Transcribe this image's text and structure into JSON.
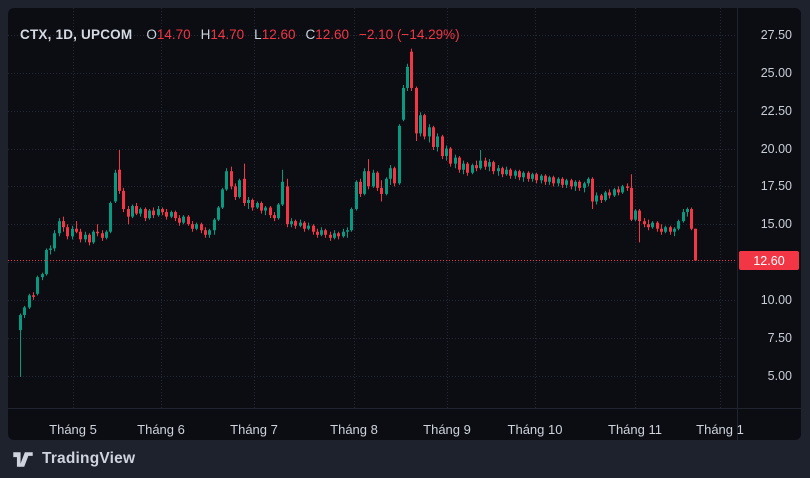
{
  "header": {
    "symbol": "CTX, 1D, UPCOM",
    "ohlc": [
      {
        "label": "O",
        "value": "14.70"
      },
      {
        "label": "H",
        "value": "14.70"
      },
      {
        "label": "L",
        "value": "12.60"
      },
      {
        "label": "C",
        "value": "12.60"
      }
    ],
    "change": "−2.10 (−14.29%)"
  },
  "chart_data": {
    "type": "candlestick",
    "title": "CTX, 1D, UPCOM",
    "xlabel": "",
    "ylabel": "",
    "x_tick_labels": [
      "Tháng 5",
      "Tháng 6",
      "Tháng 7",
      "Tháng 8",
      "Tháng 9",
      "Tháng 10",
      "Tháng 11",
      "Tháng 1"
    ],
    "y_ticks": [
      {
        "v": 27.5,
        "label": "27.50"
      },
      {
        "v": 25.0,
        "label": "25.00"
      },
      {
        "v": 22.5,
        "label": "22.50"
      },
      {
        "v": 20.0,
        "label": "20.00"
      },
      {
        "v": 17.5,
        "label": "17.50"
      },
      {
        "v": 15.0,
        "label": "15.00"
      },
      {
        "v": 10.0,
        "label": "10.00"
      },
      {
        "v": 7.5,
        "label": "7.50"
      },
      {
        "v": 5.0,
        "label": "5.00"
      }
    ],
    "ylim": [
      2.9,
      29.3
    ],
    "grid": true,
    "legend_position": "top-left",
    "last_price": 12.6,
    "last_price_label": "12.60",
    "last_candle_ohlc": {
      "open": 14.7,
      "high": 14.7,
      "low": 12.6,
      "close": 12.6
    },
    "change_abs": -2.1,
    "change_pct": -14.29,
    "colors": {
      "up": "#089981",
      "down": "#f23645",
      "price_line": "#f23645",
      "grid": "#242936",
      "separator": "#1f242e"
    },
    "candles": [
      [
        8.0,
        9.1,
        4.9,
        9.0
      ],
      [
        9.0,
        9.6,
        8.8,
        9.5
      ],
      [
        9.5,
        10.4,
        9.4,
        10.3
      ],
      [
        10.3,
        10.5,
        10.0,
        10.2
      ],
      [
        10.4,
        11.6,
        10.3,
        11.5
      ],
      [
        11.5,
        11.8,
        11.3,
        11.7
      ],
      [
        11.7,
        13.4,
        11.6,
        13.3
      ],
      [
        13.3,
        13.6,
        13.0,
        13.4
      ],
      [
        13.4,
        14.6,
        13.2,
        14.4
      ],
      [
        14.4,
        15.4,
        14.2,
        15.2
      ],
      [
        15.2,
        15.5,
        14.5,
        14.8
      ],
      [
        14.8,
        15.0,
        14.0,
        14.2
      ],
      [
        14.2,
        14.9,
        14.0,
        14.7
      ],
      [
        14.7,
        15.2,
        14.4,
        14.5
      ],
      [
        14.5,
        14.7,
        13.8,
        14.0
      ],
      [
        14.0,
        14.5,
        13.8,
        14.3
      ],
      [
        14.3,
        14.4,
        13.6,
        13.8
      ],
      [
        13.8,
        14.6,
        13.7,
        14.5
      ],
      [
        14.5,
        15.0,
        14.2,
        14.4
      ],
      [
        14.4,
        14.6,
        13.9,
        14.1
      ],
      [
        14.1,
        14.6,
        14.0,
        14.5
      ],
      [
        14.5,
        16.5,
        14.4,
        16.4
      ],
      [
        16.5,
        18.6,
        16.4,
        18.4
      ],
      [
        18.6,
        19.9,
        17.0,
        17.2
      ],
      [
        17.2,
        17.4,
        15.8,
        16.0
      ],
      [
        16.0,
        16.2,
        15.0,
        15.5
      ],
      [
        15.5,
        16.3,
        15.4,
        16.2
      ],
      [
        16.2,
        16.4,
        15.6,
        15.7
      ],
      [
        15.7,
        16.1,
        15.5,
        16.0
      ],
      [
        16.0,
        16.1,
        15.2,
        15.4
      ],
      [
        15.4,
        16.0,
        15.3,
        15.9
      ],
      [
        15.9,
        16.1,
        15.4,
        15.6
      ],
      [
        15.6,
        16.2,
        15.5,
        16.0
      ],
      [
        16.0,
        16.1,
        15.6,
        15.8
      ],
      [
        15.8,
        16.0,
        15.3,
        15.5
      ],
      [
        15.5,
        15.9,
        15.4,
        15.8
      ],
      [
        15.8,
        15.9,
        15.2,
        15.4
      ],
      [
        15.4,
        15.6,
        14.9,
        15.1
      ],
      [
        15.1,
        15.6,
        15.0,
        15.5
      ],
      [
        15.5,
        15.6,
        14.9,
        15.0
      ],
      [
        15.0,
        15.2,
        14.5,
        14.7
      ],
      [
        14.7,
        15.1,
        14.6,
        15.0
      ],
      [
        15.0,
        15.1,
        14.4,
        14.6
      ],
      [
        14.6,
        14.8,
        14.1,
        14.3
      ],
      [
        14.3,
        14.7,
        14.1,
        14.6
      ],
      [
        14.6,
        15.4,
        14.3,
        15.3
      ],
      [
        15.3,
        16.2,
        15.2,
        16.1
      ],
      [
        16.1,
        17.4,
        16.0,
        17.3
      ],
      [
        17.3,
        18.7,
        17.2,
        18.5
      ],
      [
        18.5,
        18.8,
        17.3,
        17.5
      ],
      [
        17.5,
        17.7,
        16.6,
        16.8
      ],
      [
        16.8,
        18.0,
        16.7,
        17.9
      ],
      [
        18.0,
        19.0,
        16.2,
        16.4
      ],
      [
        16.4,
        16.8,
        16.0,
        16.6
      ],
      [
        16.6,
        16.7,
        15.9,
        16.1
      ],
      [
        16.1,
        16.5,
        16.0,
        16.4
      ],
      [
        16.4,
        16.5,
        15.7,
        15.9
      ],
      [
        15.9,
        16.2,
        15.6,
        16.1
      ],
      [
        16.1,
        16.2,
        15.4,
        15.6
      ],
      [
        15.6,
        15.8,
        15.2,
        15.4
      ],
      [
        15.4,
        16.4,
        15.3,
        16.3
      ],
      [
        16.3,
        18.6,
        16.2,
        17.8
      ],
      [
        17.5,
        18.0,
        14.8,
        15.0
      ],
      [
        15.0,
        15.4,
        14.8,
        15.2
      ],
      [
        15.2,
        15.3,
        14.7,
        14.9
      ],
      [
        14.9,
        15.3,
        14.8,
        15.1
      ],
      [
        15.1,
        15.2,
        14.5,
        14.7
      ],
      [
        14.7,
        15.1,
        14.6,
        14.9
      ],
      [
        14.9,
        15.0,
        14.3,
        14.5
      ],
      [
        14.5,
        14.7,
        14.1,
        14.3
      ],
      [
        14.3,
        14.8,
        14.2,
        14.6
      ],
      [
        14.6,
        14.7,
        14.1,
        14.3
      ],
      [
        14.3,
        14.5,
        13.9,
        14.1
      ],
      [
        14.1,
        14.6,
        14.0,
        14.4
      ],
      [
        14.4,
        14.5,
        14.0,
        14.2
      ],
      [
        14.2,
        14.7,
        14.1,
        14.5
      ],
      [
        14.5,
        14.8,
        14.1,
        14.6
      ],
      [
        14.6,
        16.1,
        14.5,
        16.0
      ],
      [
        16.0,
        17.9,
        15.9,
        17.8
      ],
      [
        17.8,
        18.0,
        16.8,
        17.0
      ],
      [
        17.0,
        18.7,
        16.9,
        18.5
      ],
      [
        18.5,
        19.3,
        17.3,
        17.5
      ],
      [
        17.5,
        18.6,
        17.4,
        18.4
      ],
      [
        18.4,
        18.5,
        17.2,
        17.4
      ],
      [
        17.4,
        17.9,
        16.5,
        17.0
      ],
      [
        17.0,
        18.1,
        16.9,
        18.0
      ],
      [
        18.0,
        18.9,
        17.6,
        18.7
      ],
      [
        18.7,
        18.8,
        17.5,
        17.7
      ],
      [
        17.7,
        21.6,
        17.6,
        21.5
      ],
      [
        21.9,
        24.2,
        21.8,
        24.0
      ],
      [
        24.0,
        25.6,
        23.8,
        25.4
      ],
      [
        26.4,
        26.6,
        23.8,
        24.0
      ],
      [
        24.0,
        24.1,
        20.5,
        21.0
      ],
      [
        21.0,
        22.4,
        20.8,
        22.2
      ],
      [
        22.2,
        22.3,
        20.6,
        20.8
      ],
      [
        20.8,
        21.6,
        20.4,
        21.4
      ],
      [
        21.4,
        21.5,
        19.9,
        20.1
      ],
      [
        20.1,
        21.0,
        19.8,
        20.8
      ],
      [
        20.8,
        20.9,
        19.3,
        19.5
      ],
      [
        19.5,
        20.2,
        19.2,
        20.0
      ],
      [
        20.0,
        20.1,
        18.8,
        19.0
      ],
      [
        19.0,
        19.6,
        18.7,
        19.4
      ],
      [
        19.4,
        19.5,
        18.4,
        18.6
      ],
      [
        18.6,
        19.2,
        18.3,
        19.0
      ],
      [
        19.0,
        19.1,
        18.2,
        18.4
      ],
      [
        18.4,
        19.0,
        18.3,
        18.9
      ],
      [
        18.9,
        19.2,
        18.5,
        18.7
      ],
      [
        18.7,
        19.9,
        18.6,
        19.2
      ],
      [
        19.2,
        19.4,
        18.6,
        18.8
      ],
      [
        18.8,
        19.3,
        18.5,
        19.1
      ],
      [
        19.1,
        19.2,
        18.3,
        18.5
      ],
      [
        18.5,
        18.9,
        18.2,
        18.7
      ],
      [
        18.7,
        18.8,
        18.1,
        18.3
      ],
      [
        18.3,
        18.8,
        18.2,
        18.6
      ],
      [
        18.6,
        18.7,
        18.0,
        18.2
      ],
      [
        18.2,
        18.6,
        18.0,
        18.5
      ],
      [
        18.5,
        18.6,
        17.9,
        18.1
      ],
      [
        18.1,
        18.5,
        17.8,
        18.4
      ],
      [
        18.4,
        18.5,
        17.8,
        18.0
      ],
      [
        18.0,
        18.4,
        17.8,
        18.3
      ],
      [
        18.3,
        18.4,
        17.7,
        17.9
      ],
      [
        17.9,
        18.3,
        17.7,
        18.2
      ],
      [
        18.2,
        18.3,
        17.6,
        17.8
      ],
      [
        17.8,
        18.2,
        17.6,
        18.1
      ],
      [
        18.1,
        18.2,
        17.5,
        17.7
      ],
      [
        17.7,
        18.1,
        17.5,
        18.0
      ],
      [
        18.0,
        18.1,
        17.4,
        17.6
      ],
      [
        17.6,
        18.0,
        17.4,
        17.9
      ],
      [
        17.9,
        18.0,
        17.3,
        17.5
      ],
      [
        17.5,
        17.9,
        17.2,
        17.8
      ],
      [
        17.8,
        17.9,
        17.2,
        17.4
      ],
      [
        17.4,
        17.8,
        17.1,
        17.7
      ],
      [
        17.7,
        18.1,
        17.5,
        18.0
      ],
      [
        18.0,
        18.1,
        16.0,
        16.5
      ],
      [
        16.5,
        17.1,
        16.3,
        16.9
      ],
      [
        16.9,
        17.0,
        16.4,
        16.6
      ],
      [
        16.6,
        17.2,
        16.5,
        17.1
      ],
      [
        17.1,
        17.3,
        16.7,
        16.9
      ],
      [
        16.9,
        17.4,
        16.8,
        17.3
      ],
      [
        17.3,
        17.5,
        16.9,
        17.1
      ],
      [
        17.1,
        17.6,
        17.0,
        17.5
      ],
      [
        17.5,
        17.7,
        17.2,
        17.4
      ],
      [
        17.4,
        18.3,
        15.2,
        15.3
      ],
      [
        15.3,
        16.0,
        15.2,
        15.9
      ],
      [
        15.9,
        16.0,
        13.8,
        15.2
      ],
      [
        15.2,
        15.4,
        14.8,
        15.0
      ],
      [
        15.0,
        15.3,
        14.6,
        14.8
      ],
      [
        14.8,
        15.2,
        14.7,
        15.1
      ],
      [
        15.1,
        15.2,
        14.5,
        14.7
      ],
      [
        14.7,
        15.0,
        14.3,
        14.5
      ],
      [
        14.5,
        14.9,
        14.4,
        14.8
      ],
      [
        14.8,
        14.9,
        14.3,
        14.5
      ],
      [
        14.5,
        14.8,
        14.2,
        14.7
      ],
      [
        14.7,
        15.3,
        14.6,
        15.2
      ],
      [
        15.2,
        16.0,
        15.1,
        15.8
      ],
      [
        15.8,
        16.1,
        15.5,
        16.0
      ],
      [
        16.0,
        16.1,
        14.6,
        14.7
      ],
      [
        14.7,
        14.7,
        12.6,
        12.6
      ]
    ]
  },
  "footer": {
    "brand": "TradingView"
  }
}
